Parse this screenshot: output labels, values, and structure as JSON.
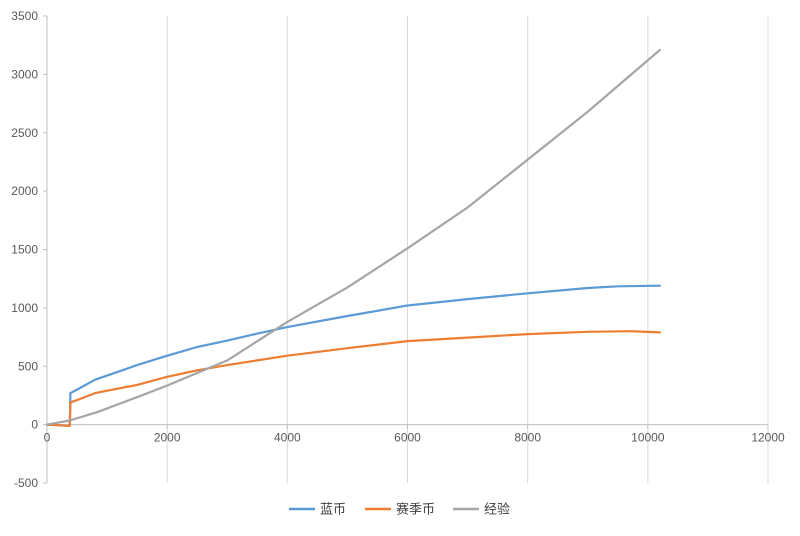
{
  "chart_data": {
    "type": "line",
    "title": "",
    "xlabel": "",
    "ylabel": "",
    "xlim": [
      0,
      12000
    ],
    "ylim": [
      -500,
      3500
    ],
    "x_ticks": [
      0,
      2000,
      4000,
      6000,
      8000,
      10000,
      12000
    ],
    "y_ticks": [
      -500,
      0,
      500,
      1000,
      1500,
      2000,
      2500,
      3000,
      3500
    ],
    "grid": "vertical-major",
    "legend_position": "bottom",
    "series": [
      {
        "name": "蓝币",
        "color": "#5B9BD5",
        "points": [
          [
            0,
            0
          ],
          [
            380,
            -10
          ],
          [
            390,
            270
          ],
          [
            500,
            300
          ],
          [
            800,
            385
          ],
          [
            1000,
            420
          ],
          [
            1500,
            510
          ],
          [
            2000,
            590
          ],
          [
            2500,
            665
          ],
          [
            3000,
            720
          ],
          [
            3500,
            780
          ],
          [
            4000,
            835
          ],
          [
            5000,
            930
          ],
          [
            6000,
            1020
          ],
          [
            7000,
            1075
          ],
          [
            8000,
            1125
          ],
          [
            9000,
            1170
          ],
          [
            9500,
            1185
          ],
          [
            10200,
            1190
          ]
        ]
      },
      {
        "name": "赛季币",
        "color": "#ED7D31",
        "points": [
          [
            0,
            0
          ],
          [
            380,
            -10
          ],
          [
            390,
            190
          ],
          [
            500,
            210
          ],
          [
            800,
            270
          ],
          [
            1500,
            340
          ],
          [
            2000,
            410
          ],
          [
            2500,
            465
          ],
          [
            3000,
            510
          ],
          [
            4000,
            590
          ],
          [
            5000,
            655
          ],
          [
            6000,
            715
          ],
          [
            7000,
            745
          ],
          [
            8000,
            775
          ],
          [
            9000,
            795
          ],
          [
            9700,
            800
          ],
          [
            10200,
            790
          ]
        ]
      },
      {
        "name": "经验",
        "color": "#A5A5A5",
        "points": [
          [
            0,
            0
          ],
          [
            380,
            35
          ],
          [
            850,
            110
          ],
          [
            1500,
            235
          ],
          [
            2000,
            335
          ],
          [
            3000,
            550
          ],
          [
            4000,
            880
          ],
          [
            5000,
            1175
          ],
          [
            6000,
            1510
          ],
          [
            7000,
            1860
          ],
          [
            8000,
            2270
          ],
          [
            9000,
            2680
          ],
          [
            10200,
            3210
          ]
        ]
      }
    ]
  }
}
